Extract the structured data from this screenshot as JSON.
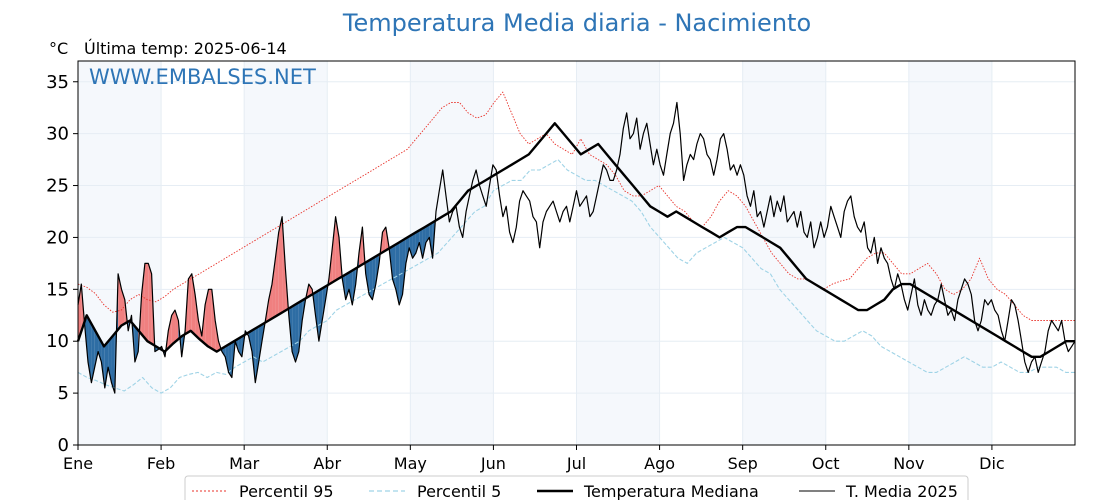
{
  "chart_data": {
    "type": "line",
    "title": "Temperatura Media diaria - Nacimiento",
    "unit_label": "°C",
    "last_temp_label": "Última temp: 2025-06-14",
    "watermark": "WWW.EMBALSES.NET",
    "ylim": [
      0,
      37
    ],
    "yticks": [
      "0",
      "5",
      "10",
      "15",
      "20",
      "25",
      "30",
      "35"
    ],
    "months": [
      "Ene",
      "Feb",
      "Mar",
      "Abr",
      "May",
      "Jun",
      "Jul",
      "Ago",
      "Sep",
      "Oct",
      "Nov",
      "Dic"
    ],
    "grid": true,
    "legend_position": "bottom",
    "fill_colors": {
      "above_median": "#f08080",
      "below_median": "#2e6da4"
    },
    "series": [
      {
        "name": "Percentil 95",
        "color": "#e8322a",
        "style": "dotted",
        "values": [
          15.5,
          15.2,
          14.6,
          13.5,
          12.8,
          13.0,
          14.0,
          14.5,
          14.0,
          13.8,
          14.3,
          15.0,
          15.5,
          16.0,
          16.5,
          17.0,
          17.5,
          18.0,
          18.5,
          19.0,
          19.5,
          20.0,
          20.5,
          21.0,
          21.5,
          22.0,
          22.5,
          23.0,
          23.5,
          24.0,
          24.5,
          25.0,
          25.5,
          26.0,
          26.5,
          27.0,
          27.5,
          28.0,
          28.5,
          29.5,
          30.5,
          31.5,
          32.5,
          33.0,
          33.0,
          32.0,
          31.5,
          31.8,
          33.0,
          34.0,
          32.0,
          30.0,
          29.0,
          29.5,
          30.0,
          29.0,
          28.5,
          28.0,
          29.5,
          28.0,
          27.5,
          27.0,
          26.0,
          24.5,
          24.0,
          24.0,
          24.5,
          25.0,
          24.0,
          23.0,
          22.5,
          21.5,
          21.0,
          22.0,
          23.5,
          24.5,
          24.0,
          23.0,
          21.5,
          20.0,
          18.5,
          17.5,
          16.5,
          16.0,
          16.0,
          15.5,
          15.0,
          15.5,
          15.8,
          16.0,
          17.0,
          18.0,
          18.5,
          18.5,
          17.5,
          16.5,
          16.5,
          17.0,
          17.5,
          16.5,
          15.0,
          14.5,
          15.0,
          16.0,
          18.0,
          16.0,
          15.0,
          14.5,
          13.5,
          12.5,
          12.0,
          12.0,
          12.0,
          12.0,
          12.0,
          12.0
        ]
      },
      {
        "name": "Percentil 5",
        "color": "#9fd3e6",
        "style": "dashed",
        "values": [
          7.0,
          6.5,
          6.2,
          5.8,
          5.5,
          5.2,
          5.8,
          6.5,
          5.5,
          5.0,
          5.5,
          6.5,
          6.8,
          7.0,
          6.5,
          7.0,
          6.8,
          7.5,
          8.0,
          8.5,
          8.0,
          8.5,
          9.0,
          9.5,
          10.0,
          11.0,
          11.5,
          12.0,
          13.0,
          13.5,
          14.0,
          14.5,
          15.0,
          15.5,
          16.0,
          16.5,
          17.0,
          17.5,
          18.0,
          18.5,
          19.5,
          20.5,
          21.5,
          22.5,
          23.0,
          24.5,
          25.0,
          25.5,
          25.5,
          26.5,
          26.5,
          27.0,
          27.5,
          26.5,
          26.0,
          25.5,
          25.5,
          25.0,
          24.5,
          24.0,
          23.5,
          22.5,
          21.0,
          20.0,
          19.0,
          18.0,
          17.5,
          18.5,
          19.0,
          19.5,
          20.0,
          19.5,
          19.0,
          18.0,
          17.0,
          16.5,
          15.0,
          14.0,
          13.0,
          12.0,
          11.0,
          10.5,
          10.0,
          10.0,
          10.5,
          11.0,
          10.5,
          9.5,
          9.0,
          8.5,
          8.0,
          7.5,
          7.0,
          7.0,
          7.5,
          8.0,
          8.5,
          8.0,
          7.5,
          7.5,
          8.0,
          7.5,
          7.0,
          7.0,
          7.5,
          7.5,
          7.5,
          7.0,
          7.0
        ]
      },
      {
        "name": "Temperatura Mediana",
        "color": "#000000",
        "style": "solid-thick",
        "values": [
          10.0,
          12.5,
          11.0,
          9.5,
          10.5,
          11.5,
          12.0,
          11.0,
          10.0,
          9.5,
          9.0,
          9.8,
          10.5,
          11.0,
          10.2,
          9.5,
          9.0,
          9.5,
          10.0,
          10.5,
          11.0,
          11.5,
          12.0,
          12.5,
          13.0,
          13.5,
          14.0,
          14.5,
          15.0,
          15.5,
          16.0,
          16.5,
          17.0,
          17.5,
          18.0,
          18.5,
          19.0,
          19.5,
          20.0,
          20.5,
          21.0,
          21.5,
          22.0,
          22.5,
          23.5,
          24.5,
          25.0,
          25.5,
          26.0,
          26.5,
          27.0,
          27.5,
          28.0,
          29.0,
          30.0,
          31.0,
          30.0,
          29.0,
          28.0,
          28.5,
          29.0,
          28.0,
          27.0,
          26.0,
          25.0,
          24.0,
          23.0,
          22.5,
          22.0,
          22.5,
          22.0,
          21.5,
          21.0,
          20.5,
          20.0,
          20.5,
          21.0,
          21.0,
          20.5,
          20.0,
          19.5,
          19.0,
          18.0,
          17.0,
          16.0,
          15.5,
          15.0,
          14.5,
          14.0,
          13.5,
          13.0,
          13.0,
          13.5,
          14.0,
          15.0,
          15.5,
          15.5,
          15.0,
          14.5,
          14.0,
          13.5,
          13.0,
          12.5,
          12.0,
          11.5,
          11.0,
          10.5,
          10.0,
          9.5,
          9.0,
          8.5,
          8.5,
          9.0,
          9.5,
          10.0,
          10.0
        ]
      },
      {
        "name": "T. Media 2025",
        "color": "#000000",
        "style": "solid-thin",
        "values": [
          13.5,
          15.5,
          11.5,
          8.0,
          6.0,
          7.5,
          9.0,
          8.0,
          5.5,
          7.5,
          6.0,
          5.0,
          16.5,
          15.0,
          14.0,
          11.0,
          12.5,
          8.0,
          9.0,
          14.5,
          17.5,
          17.5,
          16.5,
          9.0,
          9.2,
          9.5,
          8.5,
          11.0,
          12.5,
          13.0,
          12.0,
          8.5,
          11.0,
          16.0,
          16.5,
          14.5,
          12.0,
          10.5,
          13.5,
          15.0,
          15.0,
          12.0,
          10.0,
          9.0,
          8.5,
          7.0,
          6.5,
          10.0,
          9.0,
          8.5,
          11.0,
          10.5,
          9.0,
          6.0,
          8.0,
          10.0,
          12.0,
          14.0,
          15.5,
          18.0,
          20.5,
          22.0,
          17.0,
          12.5,
          9.0,
          8.0,
          9.0,
          12.0,
          14.0,
          15.5,
          15.0,
          12.5,
          10.0,
          12.0,
          14.0,
          16.0,
          19.0,
          22.0,
          20.0,
          16.0,
          14.0,
          15.0,
          13.5,
          15.5,
          18.5,
          21.0,
          16.5,
          14.5,
          14.0,
          15.5,
          17.5,
          20.5,
          21.0,
          19.0,
          16.0,
          15.0,
          13.5,
          14.5,
          17.5,
          19.0,
          18.0,
          18.5,
          19.5,
          18.0,
          19.5,
          20.0,
          18.0,
          22.5,
          24.5,
          26.5,
          24.0,
          21.5,
          22.5,
          23.0,
          21.0,
          20.0,
          22.5,
          24.0,
          25.5,
          26.5,
          25.0,
          24.0,
          23.0,
          25.0,
          27.0,
          26.5,
          24.0,
          22.0,
          23.0,
          20.5,
          19.5,
          21.0,
          23.5,
          24.5,
          24.0,
          23.5,
          22.0,
          21.5,
          19.0,
          21.5,
          22.5,
          23.0,
          23.5,
          22.5,
          21.5,
          22.5,
          23.0,
          21.5,
          23.0,
          24.5,
          23.0,
          23.5,
          24.0,
          22.0,
          22.5,
          24.0,
          25.5,
          27.0,
          26.5,
          25.5,
          25.5,
          26.5,
          28.0,
          30.5,
          32.0,
          29.5,
          30.0,
          31.5,
          28.5,
          30.0,
          31.0,
          29.0,
          27.0,
          28.5,
          27.0,
          26.0,
          28.0,
          30.0,
          31.0,
          33.0,
          30.0,
          25.5,
          27.0,
          28.0,
          27.5,
          29.0,
          30.0,
          29.5,
          28.0,
          27.5,
          26.0,
          27.5,
          29.5,
          30.0,
          28.5,
          26.5,
          27.0,
          26.0,
          27.0,
          26.0,
          24.0,
          23.0,
          24.5,
          22.0,
          22.5,
          21.0,
          22.5,
          24.0,
          22.0,
          23.5,
          22.5,
          24.0,
          21.5,
          22.0,
          22.5,
          21.0,
          22.5,
          20.5,
          20.0,
          21.5,
          19.0,
          20.0,
          21.5,
          20.0,
          21.0,
          23.0,
          22.0,
          21.0,
          20.0,
          22.5,
          23.5,
          24.0,
          22.0,
          21.0,
          20.5,
          21.5,
          19.0,
          18.5,
          20.0,
          17.5,
          19.0,
          18.0,
          17.5,
          16.0,
          15.0,
          16.5,
          15.5,
          14.0,
          13.0,
          14.5,
          16.0,
          13.5,
          12.5,
          14.0,
          13.0,
          12.5,
          13.5,
          14.0,
          15.5,
          14.0,
          12.5,
          13.0,
          12.0,
          14.0,
          15.0,
          16.0,
          15.5,
          14.5,
          12.0,
          11.0,
          12.0,
          14.0,
          13.5,
          14.0,
          13.0,
          12.5,
          11.0,
          10.0,
          12.0,
          14.0,
          13.5,
          12.0,
          10.0,
          8.0,
          7.0,
          8.0,
          8.5,
          7.0,
          8.0,
          9.0,
          11.0,
          12.0,
          11.5,
          11.0,
          12.0,
          10.0,
          9.0,
          9.5,
          10.0
        ]
      }
    ]
  },
  "legend": {
    "items": [
      {
        "label": "Percentil 95"
      },
      {
        "label": "Percentil 5"
      },
      {
        "label": "Temperatura Mediana"
      },
      {
        "label": "T. Media 2025"
      }
    ]
  }
}
